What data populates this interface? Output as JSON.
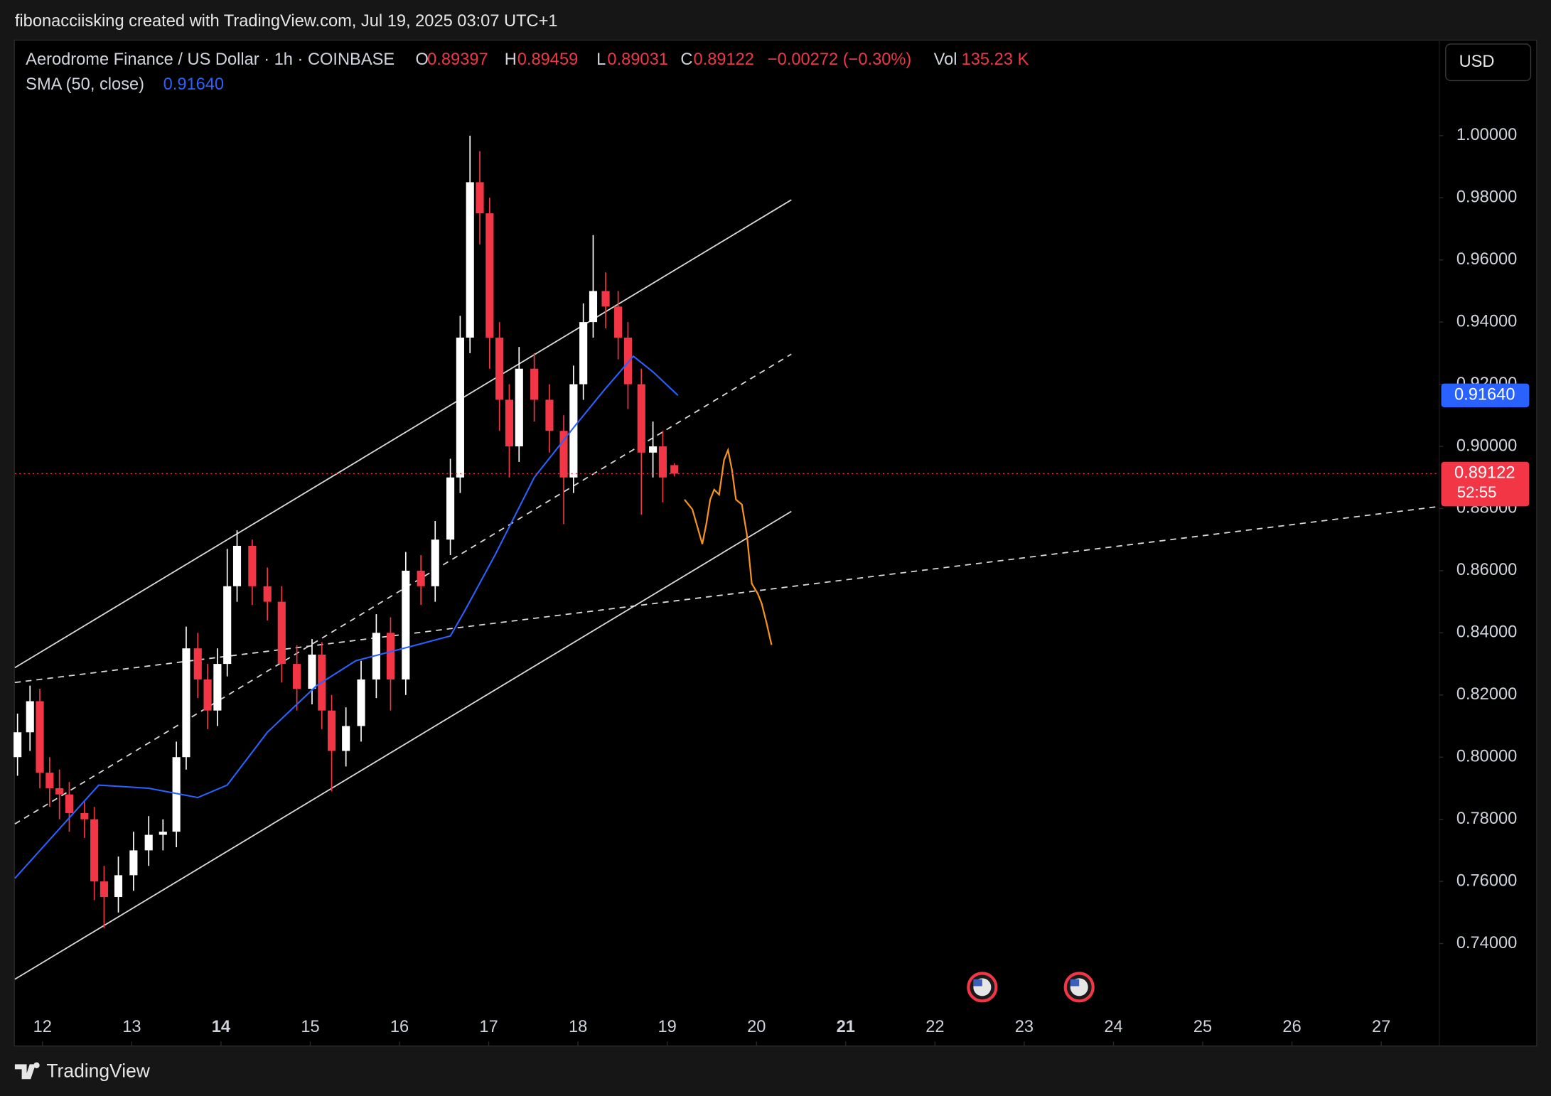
{
  "header": {
    "credit": "fibonacciisking created with TradingView.com, Jul 19, 2025 03:07 UTC+1",
    "symbol": "Aerodrome Finance / US Dollar · 1h · COINBASE",
    "open_label": "O",
    "high_label": "H",
    "low_label": "L",
    "close_label": "C",
    "change": "−0.00272 (−0.30%)",
    "volume_label": "Vol",
    "volume": "135.23 K",
    "currency": "USD",
    "countdown": "52:55",
    "brand": "TradingView"
  },
  "chart_data": {
    "type": "candlestick",
    "x": [
      11.72,
      11.86,
      11.97,
      12.08,
      12.19,
      12.3,
      12.47,
      12.58,
      12.69,
      12.85,
      13.02,
      13.19,
      13.35,
      13.5,
      13.61,
      13.74,
      13.85,
      13.96,
      14.07,
      14.18,
      14.35,
      14.52,
      14.68,
      14.85,
      15.02,
      15.13,
      15.24,
      15.4,
      15.57,
      15.74,
      15.9,
      16.07,
      16.24,
      16.4,
      16.57,
      16.68,
      16.79,
      16.9,
      17.01,
      17.12,
      17.23,
      17.34,
      17.51,
      17.68,
      17.84,
      17.95,
      18.06,
      18.17,
      18.31,
      18.45,
      18.56,
      18.71,
      18.84,
      18.95,
      19.08
    ],
    "open": [
      0.8,
      0.808,
      0.818,
      0.795,
      0.79,
      0.788,
      0.782,
      0.78,
      0.76,
      0.755,
      0.762,
      0.77,
      0.775,
      0.776,
      0.8,
      0.835,
      0.825,
      0.815,
      0.83,
      0.855,
      0.868,
      0.855,
      0.85,
      0.83,
      0.822,
      0.833,
      0.815,
      0.802,
      0.81,
      0.825,
      0.84,
      0.825,
      0.86,
      0.855,
      0.87,
      0.89,
      0.935,
      0.985,
      0.975,
      0.935,
      0.915,
      0.9,
      0.925,
      0.915,
      0.905,
      0.89,
      0.92,
      0.94,
      0.95,
      0.945,
      0.935,
      0.92,
      0.898,
      0.9,
      0.89397
    ],
    "high": [
      0.814,
      0.823,
      0.822,
      0.8,
      0.796,
      0.792,
      0.786,
      0.784,
      0.765,
      0.768,
      0.776,
      0.781,
      0.78,
      0.805,
      0.842,
      0.84,
      0.83,
      0.835,
      0.867,
      0.873,
      0.87,
      0.861,
      0.855,
      0.836,
      0.838,
      0.837,
      0.82,
      0.816,
      0.831,
      0.846,
      0.845,
      0.866,
      0.865,
      0.876,
      0.896,
      0.942,
      1.0,
      0.995,
      0.98,
      0.94,
      0.92,
      0.932,
      0.93,
      0.92,
      0.91,
      0.926,
      0.946,
      0.968,
      0.956,
      0.95,
      0.94,
      0.925,
      0.908,
      0.905,
      0.89459
    ],
    "low": [
      0.794,
      0.802,
      0.79,
      0.784,
      0.78,
      0.776,
      0.774,
      0.754,
      0.745,
      0.75,
      0.757,
      0.765,
      0.77,
      0.771,
      0.796,
      0.819,
      0.809,
      0.81,
      0.826,
      0.85,
      0.849,
      0.844,
      0.824,
      0.815,
      0.817,
      0.809,
      0.789,
      0.797,
      0.805,
      0.819,
      0.815,
      0.82,
      0.849,
      0.85,
      0.865,
      0.885,
      0.93,
      0.965,
      0.925,
      0.905,
      0.89,
      0.895,
      0.908,
      0.898,
      0.875,
      0.885,
      0.915,
      0.935,
      0.938,
      0.928,
      0.912,
      0.878,
      0.89,
      0.882,
      0.89031
    ],
    "close": [
      0.808,
      0.818,
      0.795,
      0.79,
      0.788,
      0.782,
      0.78,
      0.76,
      0.755,
      0.762,
      0.77,
      0.775,
      0.776,
      0.8,
      0.835,
      0.825,
      0.815,
      0.83,
      0.855,
      0.868,
      0.855,
      0.85,
      0.83,
      0.822,
      0.833,
      0.815,
      0.802,
      0.81,
      0.825,
      0.84,
      0.825,
      0.86,
      0.855,
      0.87,
      0.89,
      0.935,
      0.985,
      0.975,
      0.935,
      0.915,
      0.9,
      0.925,
      0.915,
      0.905,
      0.89,
      0.92,
      0.94,
      0.95,
      0.945,
      0.935,
      0.92,
      0.898,
      0.9,
      0.89,
      0.89122
    ],
    "up_color": "#ffffff",
    "down_color": "#f23645",
    "sma": {
      "name": "SMA (50, close)",
      "color": "#2962ff",
      "last_label": "0.91640",
      "x": [
        11.69,
        12.63,
        13.19,
        13.74,
        14.07,
        14.52,
        15.07,
        15.51,
        16.18,
        16.57,
        16.73,
        17.07,
        17.51,
        17.95,
        18.29,
        18.62,
        18.84,
        19.12
      ],
      "values": [
        0.761,
        0.791,
        0.79,
        0.787,
        0.791,
        0.808,
        0.823,
        0.831,
        0.836,
        0.839,
        0.847,
        0.865,
        0.89,
        0.906,
        0.918,
        0.929,
        0.924,
        0.9164
      ]
    },
    "xlim": [
      11.69,
      27.65
    ],
    "ylim": [
      0.7072,
      1.0309
    ],
    "xticks": [
      12,
      13,
      14,
      15,
      16,
      17,
      18,
      19,
      20,
      21,
      22,
      23,
      24,
      25,
      26,
      27
    ],
    "bold_xticks": [
      14,
      21
    ],
    "yticks": [
      {
        "value": 0.74,
        "label": "0.74000"
      },
      {
        "value": 0.76,
        "label": "0.76000"
      },
      {
        "value": 0.78,
        "label": "0.78000"
      },
      {
        "value": 0.8,
        "label": "0.80000"
      },
      {
        "value": 0.82,
        "label": "0.82000"
      },
      {
        "value": 0.84,
        "label": "0.84000"
      },
      {
        "value": 0.86,
        "label": "0.86000"
      },
      {
        "value": 0.88,
        "label": "0.88000"
      },
      {
        "value": 0.9,
        "label": "0.90000"
      },
      {
        "value": 0.92,
        "label": "0.92000"
      },
      {
        "value": 0.94,
        "label": "0.94000"
      },
      {
        "value": 0.96,
        "label": "0.96000"
      },
      {
        "value": 0.98,
        "label": "0.98000"
      },
      {
        "value": 1.0,
        "label": "1.00000"
      }
    ],
    "grid": false
  }
}
